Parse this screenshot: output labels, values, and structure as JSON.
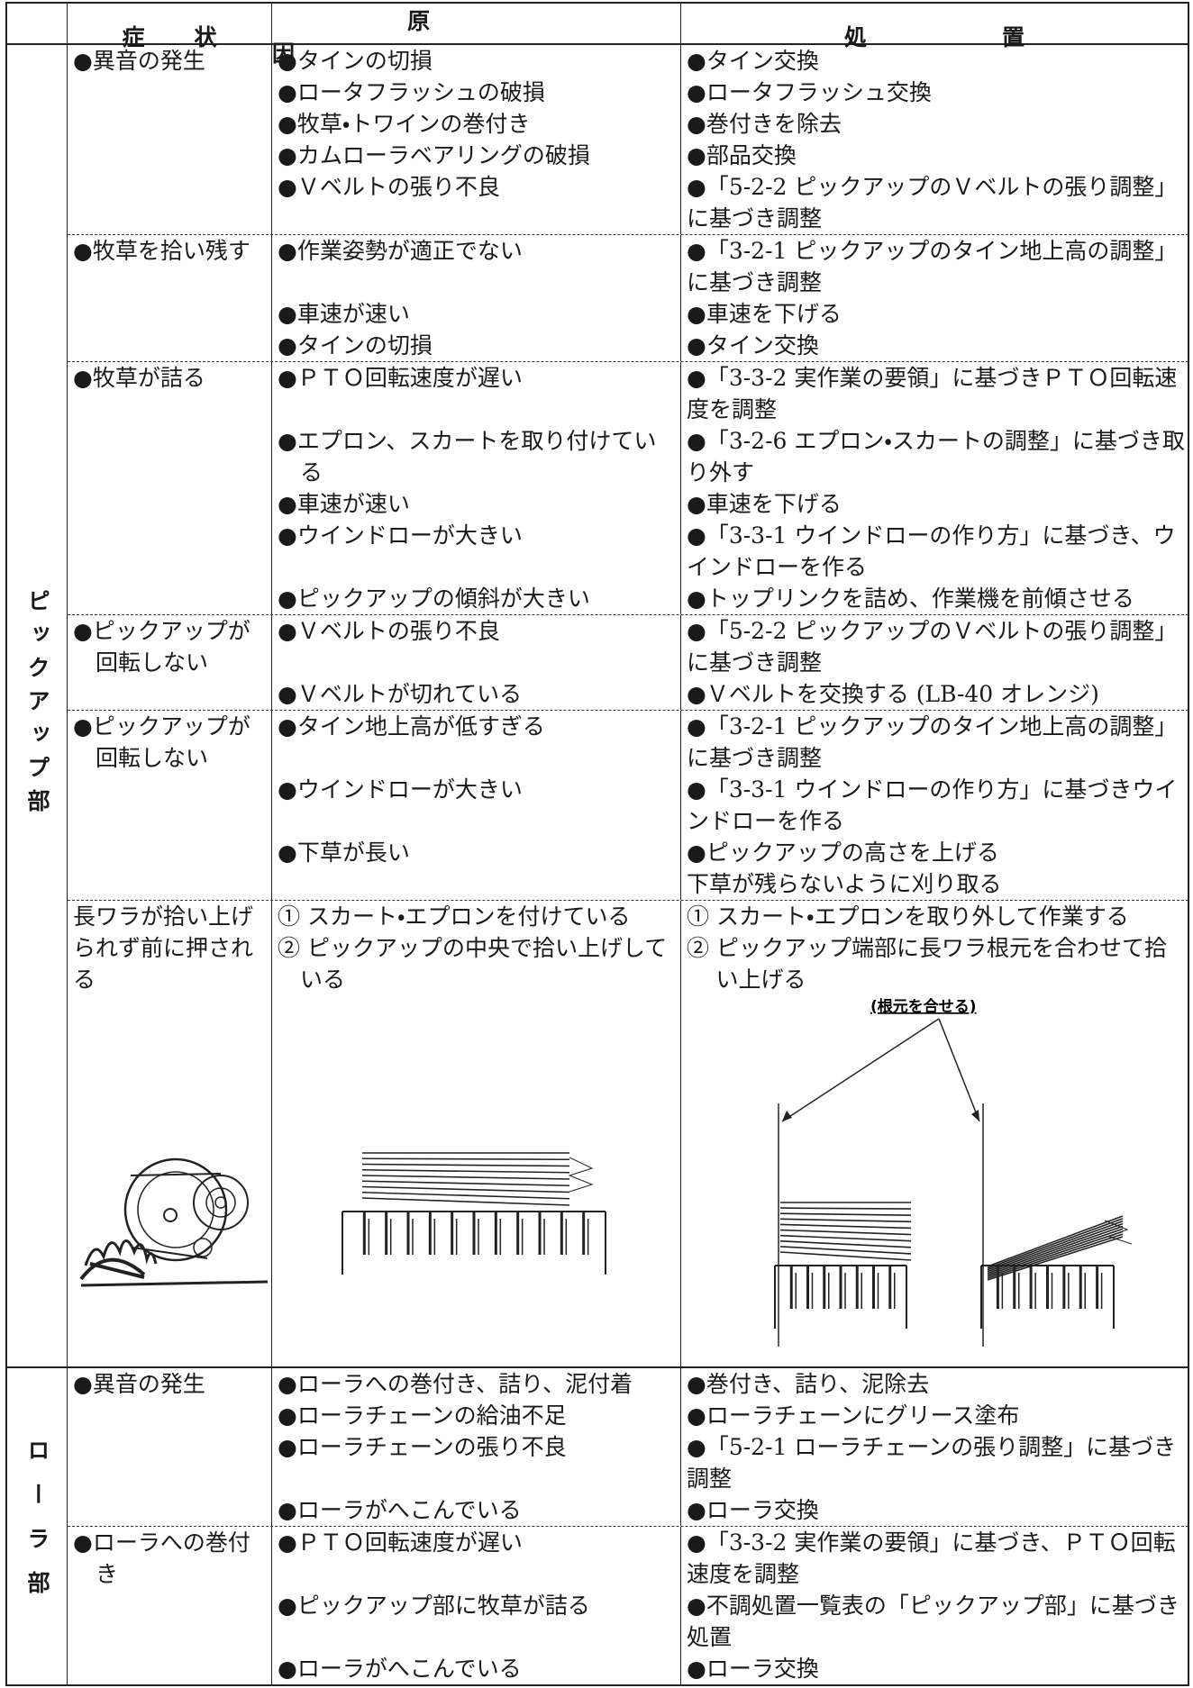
{
  "header": {
    "columns": [
      "症状",
      "原因",
      "処置"
    ]
  },
  "sections": [
    {
      "label": "ピックアップ部",
      "rows": [
        {
          "symptom": "●異音の発生",
          "items": [
            {
              "cause": "●タインの切損",
              "remedy": "●タイン交換"
            },
            {
              "cause": "●ロータフラッシュの破損",
              "remedy": "●ロータフラッシュ交換"
            },
            {
              "cause": "●牧草・トワインの巻付き",
              "remedy": "●巻付きを除去"
            },
            {
              "cause": "●カムローラベアリングの破損",
              "remedy": "●部品交換"
            },
            {
              "cause": "●Ｖベルトの張り不良",
              "remedy": "●「5-2-2 ピックアップのＶベルトの張り調整」に基づき調整"
            }
          ]
        },
        {
          "symptom": "●牧草を拾い残す",
          "items": [
            {
              "cause": "●作業姿勢が適正でない",
              "remedy": "●「3-2-1 ピックアップのタイン地上高の調整」に基づき調整"
            },
            {
              "cause": "●車速が速い",
              "remedy": "●車速を下げる"
            },
            {
              "cause": "●タインの切損",
              "remedy": "●タイン交換"
            }
          ]
        },
        {
          "symptom": "●牧草が詰る",
          "items": [
            {
              "cause": "●ＰＴＯ回転速度が遅い",
              "remedy": "●「3-3-2 実作業の要領」に基づきＰＴＯ回転速度を調整"
            },
            {
              "cause": "●エプロン、スカートを取り付けている",
              "remedy": "●「3-2-6 エプロン・スカートの調整」に基づき取り外す"
            },
            {
              "cause": "●車速が速い",
              "remedy": "●車速を下げる"
            },
            {
              "cause": "●ウインドローが大きい",
              "remedy": "●「3-3-1 ウインドローの作り方」に基づき、ウインドローを作る"
            },
            {
              "cause": "●ピックアップの傾斜が大きい",
              "remedy": "●トップリンクを詰め、作業機を前傾させる"
            }
          ]
        },
        {
          "symptom": "●ピックアップが回転しない",
          "items": [
            {
              "cause": "●Ｖベルトの張り不良",
              "remedy": "●「5-2-2 ピックアップのＶベルトの張り調整」に基づき調整"
            },
            {
              "cause": "●Ｖベルトが切れている",
              "remedy": "●Ｖベルトを交換する (LB-40 オレンジ)"
            }
          ]
        },
        {
          "symptom": "●ピックアップが回転しない",
          "items": [
            {
              "cause": "●タイン地上高が低すぎる",
              "remedy": "●「3-2-1 ピックアップのタイン地上高の調整」に基づき調整"
            },
            {
              "cause": "●ウインドローが大きい",
              "remedy": "●「3-3-1 ウインドローの作り方」に基づきウインドローを作る"
            },
            {
              "cause": "●下草が長い",
              "remedy": "●ピックアップの高さを上げる\n下草が残らないように刈り取る"
            }
          ]
        },
        {
          "symptom": "長ワラが拾い上げられず前に押される",
          "figure_note": "(根元を合せる)",
          "items": [
            {
              "cause": "① スカート・エプロンを付けている",
              "remedy": "① スカート・エプロンを取り外して作業する"
            },
            {
              "cause": "② ピックアップの中央で拾い上げしている",
              "remedy": "② ピックアップ端部に長ワラ根元を合わせて拾い上げる"
            }
          ]
        }
      ]
    },
    {
      "label": "ローラ部",
      "rows": [
        {
          "symptom": "●異音の発生",
          "items": [
            {
              "cause": "●ローラへの巻付き、詰り、泥付着",
              "remedy": "●巻付き、詰り、泥除去"
            },
            {
              "cause": "●ローラチェーンの給油不足",
              "remedy": "●ローラチェーンにグリース塗布"
            },
            {
              "cause": "●ローラチェーンの張り不良",
              "remedy": "●「5-2-1 ローラチェーンの張り調整」に基づき調整"
            },
            {
              "cause": "●ローラがへこんでいる",
              "remedy": "●ローラ交換"
            }
          ]
        },
        {
          "symptom": "●ローラへの巻付き",
          "items": [
            {
              "cause": "●ＰＴＯ回転速度が遅い",
              "remedy": "●「3-3-2 実作業の要領」に基づき、ＰＴＯ回転速度を調整"
            },
            {
              "cause": "●ピックアップ部に牧草が詰る",
              "remedy": "●不調処置一覧表の「ピックアップ部」に基づき処置"
            },
            {
              "cause": "●ローラがへこんでいる",
              "remedy": "●ローラ交換"
            }
          ]
        }
      ]
    }
  ]
}
